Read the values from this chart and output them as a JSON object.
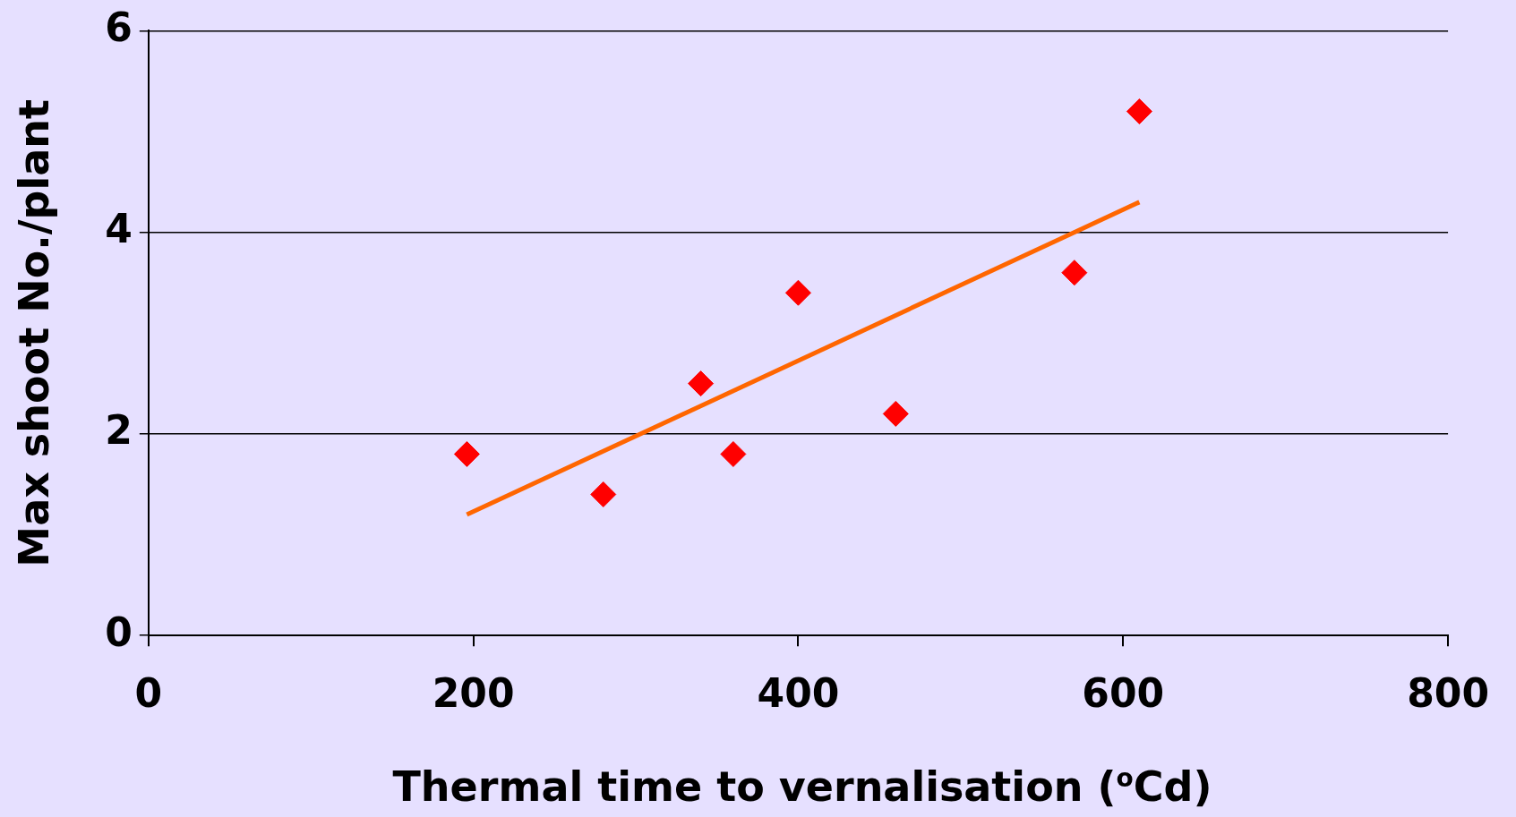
{
  "chart_data": {
    "type": "scatter",
    "xlabel": "Thermal time to vernalisation ($^{o}$Cd)",
    "ylabel": "Max shoot No./plant",
    "x": [
      196,
      280,
      340,
      360,
      400,
      460,
      570,
      610
    ],
    "series": [
      {
        "color": "#ff0000",
        "values": [
          1.8,
          1.4,
          2.5,
          1.8,
          3.4,
          2.2,
          3.6,
          5.2
        ]
      },
      {
        "type": "line",
        "color": "#ff6600",
        "x": [
          196,
          610
        ],
        "values": [
          1.2,
          4.3
        ],
        "marker": "none"
      }
    ],
    "xlim": [
      0,
      800
    ],
    "xticks": [
      0,
      200,
      400,
      600,
      800
    ],
    "ylim": [
      0,
      6
    ],
    "yticks": [
      0,
      2,
      4,
      6
    ],
    "grid": "y",
    "legend": false,
    "marker": "diamond",
    "line_style": "solid"
  }
}
